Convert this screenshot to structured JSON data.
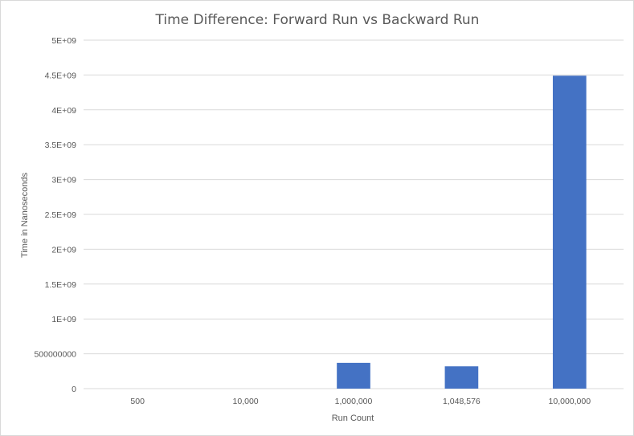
{
  "chart_data": {
    "type": "bar",
    "title": "Time Difference: Forward Run vs Backward Run",
    "xlabel": "Run Count",
    "ylabel": "Time in Nanoseconds",
    "categories": [
      "500",
      "10,000",
      "1,000,000",
      "1,048,576",
      "10,000,000"
    ],
    "values": [
      0,
      0,
      370000000,
      320000000,
      4490000000
    ],
    "ylim": [
      0,
      5000000000
    ],
    "y_ticks": [
      {
        "value": 0,
        "label": "0"
      },
      {
        "value": 500000000,
        "label": "500000000"
      },
      {
        "value": 1000000000,
        "label": "1E+09"
      },
      {
        "value": 1500000000,
        "label": "1.5E+09"
      },
      {
        "value": 2000000000,
        "label": "2E+09"
      },
      {
        "value": 2500000000,
        "label": "2.5E+09"
      },
      {
        "value": 3000000000,
        "label": "3E+09"
      },
      {
        "value": 3500000000,
        "label": "3.5E+09"
      },
      {
        "value": 4000000000,
        "label": "4E+09"
      },
      {
        "value": 4500000000,
        "label": "4.5E+09"
      },
      {
        "value": 5000000000,
        "label": "5E+09"
      }
    ],
    "grid": true,
    "legend": "none",
    "colors": {
      "bar": "#4472c4"
    }
  }
}
